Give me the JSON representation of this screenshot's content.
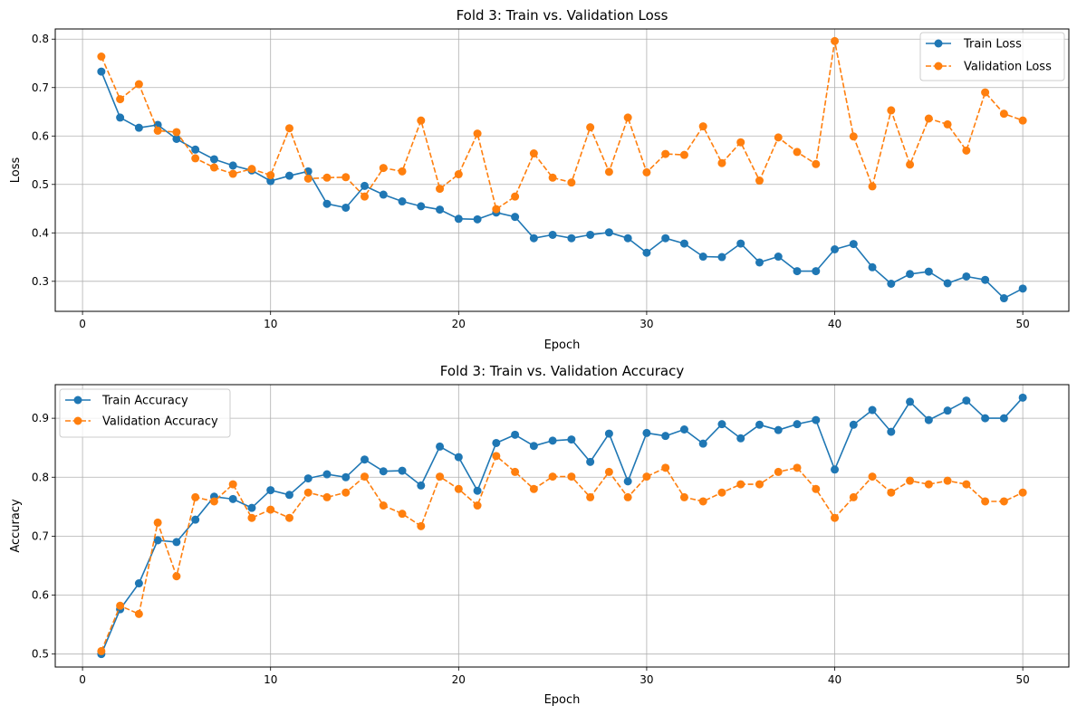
{
  "colors": {
    "train": "#1f77b4",
    "validation": "#ff7f0e",
    "grid": "#b0b0b0"
  },
  "chart_data": [
    {
      "type": "line",
      "title": "Fold 3: Train vs. Validation Loss",
      "xlabel": "Epoch",
      "ylabel": "Loss",
      "xlim": [
        -1.45,
        52.45
      ],
      "ylim": [
        0.238,
        0.821
      ],
      "xticks": [
        0,
        10,
        20,
        30,
        40,
        50
      ],
      "yticks": [
        0.3,
        0.4,
        0.5,
        0.6,
        0.7,
        0.8
      ],
      "xtick_labels": [
        "0",
        "10",
        "20",
        "30",
        "40",
        "50"
      ],
      "ytick_labels": [
        "0.3",
        "0.4",
        "0.5",
        "0.6",
        "0.7",
        "0.8"
      ],
      "grid": true,
      "legend_position": "upper right",
      "x": [
        1,
        2,
        3,
        4,
        5,
        6,
        7,
        8,
        9,
        10,
        11,
        12,
        13,
        14,
        15,
        16,
        17,
        18,
        19,
        20,
        21,
        22,
        23,
        24,
        25,
        26,
        27,
        28,
        29,
        30,
        31,
        32,
        33,
        34,
        35,
        36,
        37,
        38,
        39,
        40,
        41,
        42,
        43,
        44,
        45,
        46,
        47,
        48,
        49,
        50
      ],
      "series": [
        {
          "name": "Train Loss",
          "style": "solid",
          "color": "#1f77b4",
          "values": [
            0.733,
            0.638,
            0.617,
            0.623,
            0.594,
            0.572,
            0.552,
            0.539,
            0.529,
            0.507,
            0.518,
            0.527,
            0.46,
            0.452,
            0.497,
            0.479,
            0.465,
            0.455,
            0.448,
            0.429,
            0.428,
            0.442,
            0.433,
            0.389,
            0.396,
            0.389,
            0.396,
            0.401,
            0.389,
            0.359,
            0.389,
            0.378,
            0.351,
            0.35,
            0.378,
            0.339,
            0.351,
            0.321,
            0.321,
            0.366,
            0.377,
            0.329,
            0.295,
            0.315,
            0.32,
            0.296,
            0.31,
            0.303,
            0.265,
            0.285
          ]
        },
        {
          "name": "Validation Loss",
          "style": "dashed",
          "color": "#ff7f0e",
          "values": [
            0.764,
            0.676,
            0.707,
            0.611,
            0.608,
            0.554,
            0.535,
            0.522,
            0.532,
            0.519,
            0.616,
            0.512,
            0.514,
            0.515,
            0.475,
            0.534,
            0.527,
            0.632,
            0.491,
            0.521,
            0.605,
            0.449,
            0.475,
            0.564,
            0.514,
            0.504,
            0.618,
            0.526,
            0.638,
            0.525,
            0.563,
            0.561,
            0.62,
            0.544,
            0.587,
            0.508,
            0.597,
            0.567,
            0.542,
            0.796,
            0.599,
            0.496,
            0.653,
            0.541,
            0.636,
            0.624,
            0.57,
            0.69,
            0.646,
            0.632
          ]
        }
      ]
    },
    {
      "type": "line",
      "title": "Fold 3: Train vs. Validation Accuracy",
      "xlabel": "Epoch",
      "ylabel": "Accuracy",
      "xlim": [
        -1.45,
        52.45
      ],
      "ylim": [
        0.478,
        0.957
      ],
      "xticks": [
        0,
        10,
        20,
        30,
        40,
        50
      ],
      "yticks": [
        0.5,
        0.6,
        0.7,
        0.8,
        0.9
      ],
      "xtick_labels": [
        "0",
        "10",
        "20",
        "30",
        "40",
        "50"
      ],
      "ytick_labels": [
        "0.5",
        "0.6",
        "0.7",
        "0.8",
        "0.9"
      ],
      "grid": true,
      "legend_position": "upper left",
      "x": [
        1,
        2,
        3,
        4,
        5,
        6,
        7,
        8,
        9,
        10,
        11,
        12,
        13,
        14,
        15,
        16,
        17,
        18,
        19,
        20,
        21,
        22,
        23,
        24,
        25,
        26,
        27,
        28,
        29,
        30,
        31,
        32,
        33,
        34,
        35,
        36,
        37,
        38,
        39,
        40,
        41,
        42,
        43,
        44,
        45,
        46,
        47,
        48,
        49,
        50
      ],
      "series": [
        {
          "name": "Train Accuracy",
          "style": "solid",
          "color": "#1f77b4",
          "values": [
            0.5,
            0.576,
            0.62,
            0.693,
            0.69,
            0.728,
            0.767,
            0.763,
            0.748,
            0.778,
            0.77,
            0.798,
            0.805,
            0.8,
            0.83,
            0.81,
            0.811,
            0.786,
            0.852,
            0.834,
            0.777,
            0.858,
            0.872,
            0.853,
            0.862,
            0.864,
            0.826,
            0.874,
            0.793,
            0.875,
            0.87,
            0.881,
            0.857,
            0.89,
            0.866,
            0.889,
            0.88,
            0.89,
            0.897,
            0.813,
            0.889,
            0.914,
            0.877,
            0.928,
            0.897,
            0.913,
            0.93,
            0.9,
            0.9,
            0.935
          ]
        },
        {
          "name": "Validation Accuracy",
          "style": "dashed",
          "color": "#ff7f0e",
          "values": [
            0.505,
            0.582,
            0.568,
            0.723,
            0.632,
            0.766,
            0.759,
            0.788,
            0.731,
            0.745,
            0.731,
            0.774,
            0.766,
            0.774,
            0.801,
            0.752,
            0.738,
            0.717,
            0.801,
            0.78,
            0.752,
            0.836,
            0.809,
            0.78,
            0.801,
            0.801,
            0.766,
            0.809,
            0.766,
            0.801,
            0.816,
            0.766,
            0.759,
            0.774,
            0.788,
            0.788,
            0.809,
            0.816,
            0.78,
            0.731,
            0.766,
            0.801,
            0.774,
            0.794,
            0.788,
            0.794,
            0.788,
            0.759,
            0.759,
            0.774
          ]
        }
      ]
    }
  ]
}
